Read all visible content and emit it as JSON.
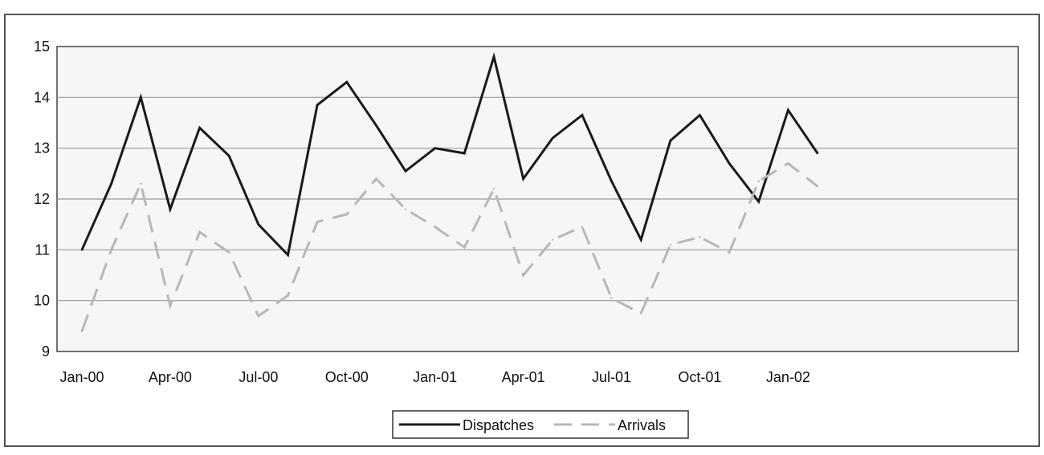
{
  "chart_data": {
    "type": "line",
    "title": "",
    "xlabel": "",
    "ylabel": "",
    "ylim": [
      9,
      15
    ],
    "yticks": [
      9,
      10,
      11,
      12,
      13,
      14,
      15
    ],
    "x": [
      "Jan-00",
      "Feb-00",
      "Mar-00",
      "Apr-00",
      "May-00",
      "Jun-00",
      "Jul-00",
      "Aug-00",
      "Sep-00",
      "Oct-00",
      "Nov-00",
      "Dec-00",
      "Jan-01",
      "Feb-01",
      "Mar-01",
      "Apr-01",
      "May-01",
      "Jun-01",
      "Jul-01",
      "Aug-01",
      "Sep-01",
      "Oct-01",
      "Nov-01",
      "Dec-01",
      "Jan-02",
      "Feb-02"
    ],
    "xtick_labels": [
      "Jan-00",
      "Apr-00",
      "Jul-00",
      "Oct-00",
      "Jan-01",
      "Apr-01",
      "Jul-01",
      "Oct-01",
      "Jan-02"
    ],
    "grid": true,
    "legend_position": "bottom-center",
    "series": [
      {
        "name": "Dispatches",
        "color": "#1a1a1a",
        "style": "solid",
        "values": [
          11.0,
          12.3,
          14.0,
          11.8,
          13.4,
          12.85,
          11.5,
          10.9,
          13.85,
          14.3,
          13.45,
          12.55,
          13.0,
          12.9,
          14.8,
          12.4,
          13.2,
          13.65,
          12.35,
          11.2,
          13.15,
          13.65,
          12.7,
          11.95,
          13.75,
          12.9
        ]
      },
      {
        "name": "Arrivals",
        "color": "#b8b8b8",
        "style": "dashed",
        "values": [
          9.4,
          11.0,
          12.3,
          9.9,
          11.35,
          10.95,
          9.7,
          10.1,
          11.55,
          11.7,
          12.4,
          11.8,
          11.45,
          11.05,
          12.2,
          10.5,
          11.2,
          11.45,
          10.05,
          9.75,
          11.1,
          11.25,
          10.95,
          12.35,
          12.7,
          12.25
        ]
      }
    ]
  }
}
